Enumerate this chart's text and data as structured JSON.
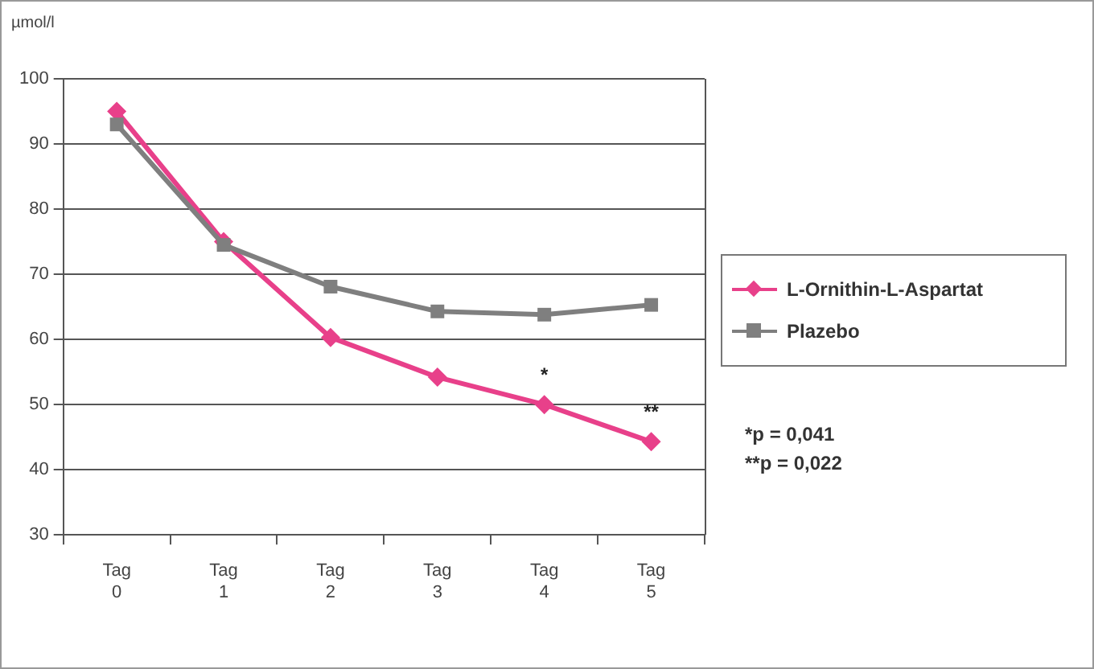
{
  "chart_data": {
    "type": "line",
    "ylabel": "µmol/l",
    "categories": [
      "Tag 0",
      "Tag 1",
      "Tag 2",
      "Tag 3",
      "Tag 4",
      "Tag 5"
    ],
    "series": [
      {
        "name": "L-Ornithin-L-Aspartat",
        "color": "#e8408a",
        "marker": "diamond",
        "values": [
          95,
          75,
          60.3,
          54.2,
          50,
          44.3
        ]
      },
      {
        "name": "Plazebo",
        "color": "#7f7f7f",
        "marker": "square",
        "values": [
          93,
          74.5,
          68.1,
          64.3,
          63.8,
          65.3
        ]
      }
    ],
    "ylim": [
      30,
      100
    ],
    "yticks": [
      30,
      40,
      50,
      60,
      70,
      80,
      90,
      100
    ],
    "grid": "y",
    "legend": "right",
    "line_style": "solid",
    "annotations": [
      {
        "text": "*",
        "x": "Tag 4",
        "y": 50
      },
      {
        "text": "**",
        "x": "Tag 5",
        "y": 44.3
      },
      "*p = 0,041",
      "**p = 0,022"
    ]
  }
}
